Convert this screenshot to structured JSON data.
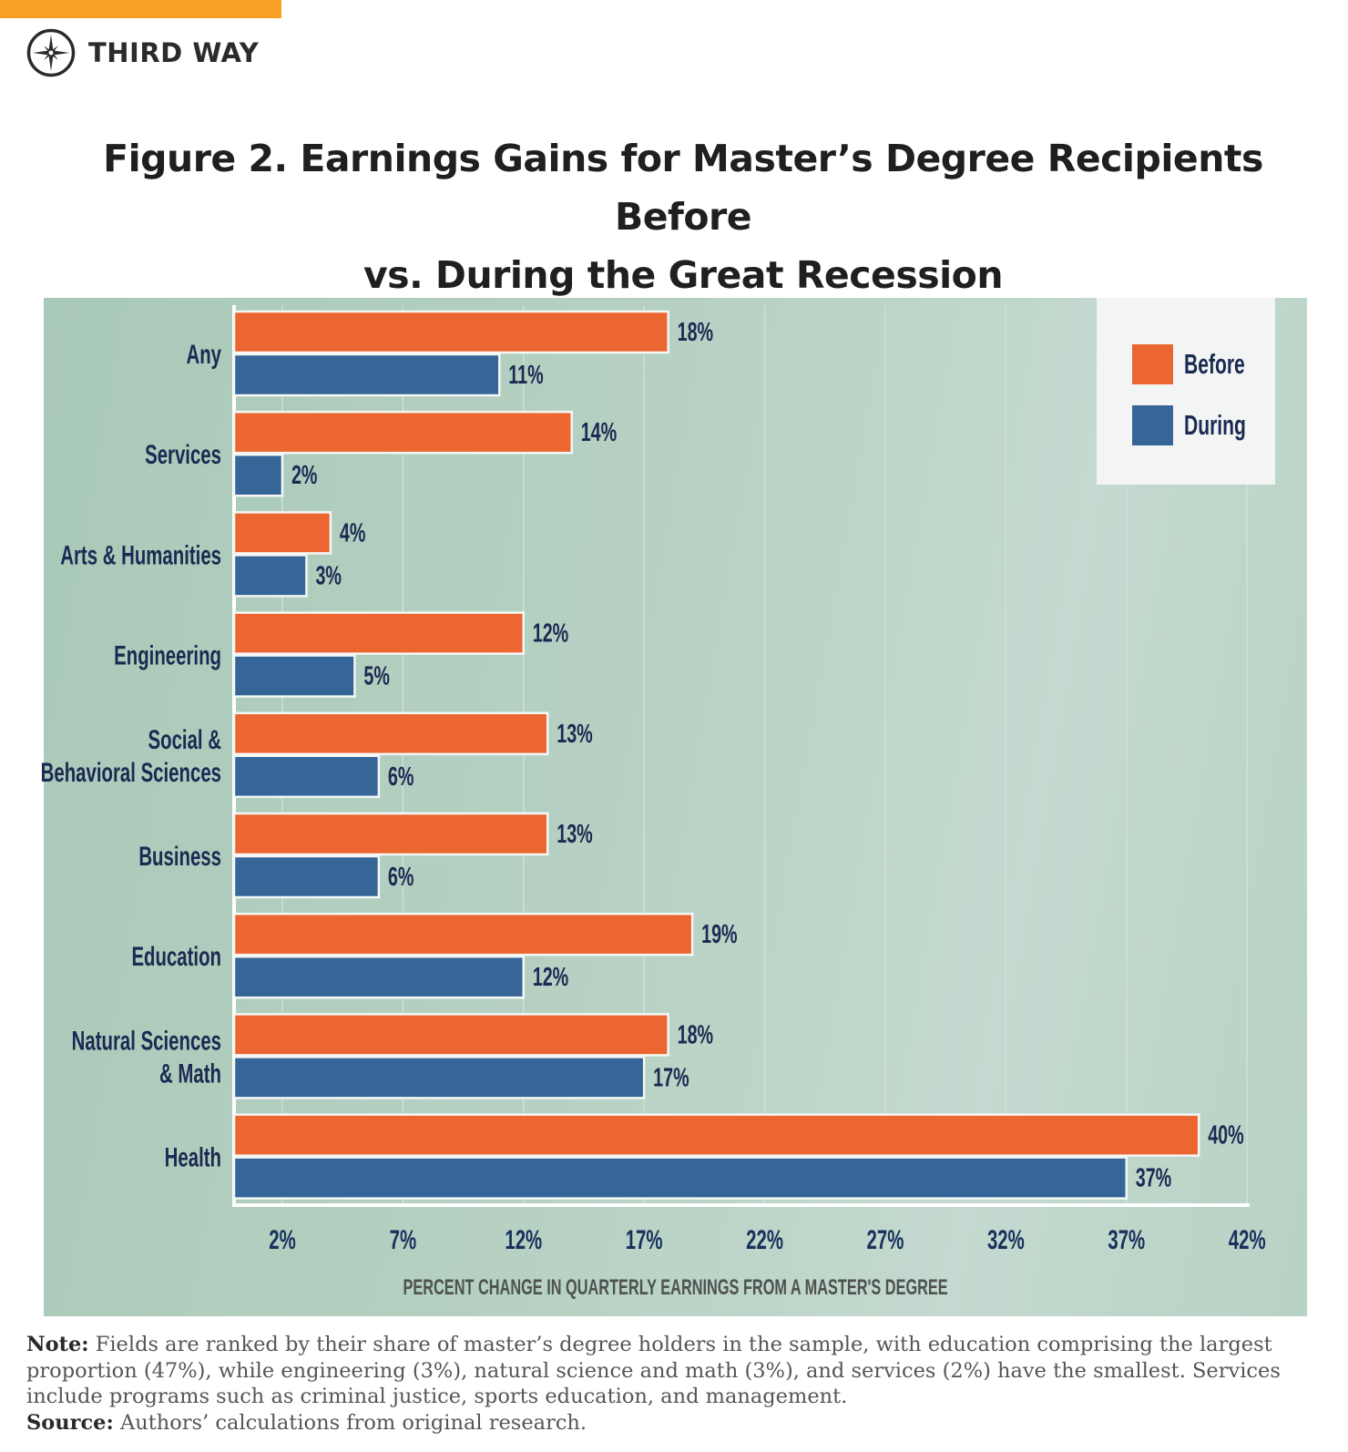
{
  "brand": {
    "name": "THIRD WAY",
    "accent_bar_color": "#f9a024"
  },
  "title": {
    "line1": "Figure 2. Earnings Gains for Master’s Degree Recipients Before",
    "line2": "vs. During the Great Recession"
  },
  "chart_data": {
    "type": "bar",
    "orientation": "horizontal",
    "title": "Figure 2. Earnings Gains for Master’s Degree Recipients Before vs. During the Great Recession",
    "categories": [
      "Any",
      "Services",
      "Arts & Humanities",
      "Engineering",
      "Social & Behavioral Sciences",
      "Business",
      "Education",
      "Natural Sciences & Math",
      "Health"
    ],
    "category_lines": [
      [
        "Any"
      ],
      [
        "Services"
      ],
      [
        "Arts & Humanities"
      ],
      [
        "Engineering"
      ],
      [
        "Social &",
        "Behavioral Sciences"
      ],
      [
        "Business"
      ],
      [
        "Education"
      ],
      [
        "Natural Sciences",
        "& Math"
      ],
      [
        "Health"
      ]
    ],
    "series": [
      {
        "name": "Before",
        "color": "#ec6631",
        "values": [
          18,
          14,
          4,
          12,
          13,
          13,
          19,
          18,
          40
        ],
        "labels": [
          "18%",
          "14%",
          "4%",
          "12%",
          "13%",
          "13%",
          "19%",
          "18%",
          "40%"
        ]
      },
      {
        "name": "During",
        "color": "#356697",
        "values": [
          11,
          2,
          3,
          5,
          6,
          6,
          12,
          17,
          37
        ],
        "labels": [
          "11%",
          "2%",
          "3%",
          "5%",
          "6%",
          "6%",
          "12%",
          "17%",
          "37%"
        ]
      }
    ],
    "xlabel": "PERCENT CHANGE IN QUARTERLY EARNINGS FROM A MASTER'S DEGREE",
    "ylabel": "",
    "xlim": [
      0,
      42
    ],
    "xticks": [
      2,
      7,
      12,
      17,
      22,
      27,
      32,
      37,
      42
    ],
    "xtick_labels": [
      "2%",
      "7%",
      "12%",
      "17%",
      "22%",
      "27%",
      "32%",
      "37%",
      "42%"
    ],
    "grid": "vertical",
    "legend": "top-right"
  },
  "note": {
    "note_label": "Note:",
    "note_text": " Fields are ranked by their share of master’s degree holders in the sample, with education comprising the largest proportion (47%), while engineering (3%), natural science and math (3%), and services (2%) have the smallest. Services include programs such as criminal justice, sports education, and management.",
    "source_label": "Source:",
    "source_text": " Authors’ calculations from original research."
  }
}
